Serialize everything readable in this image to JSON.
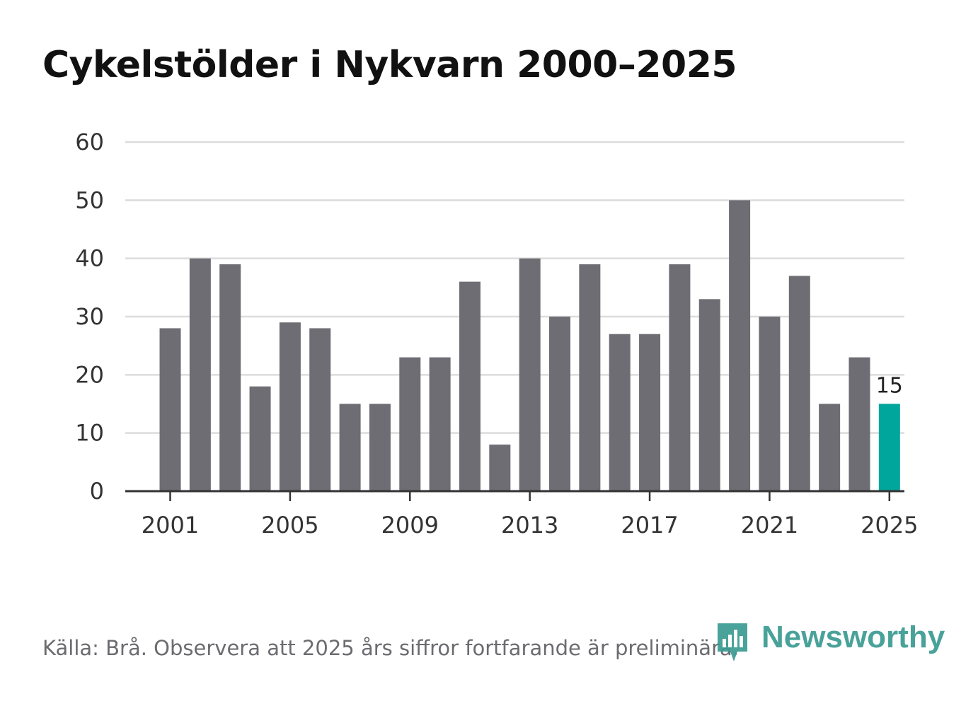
{
  "title": "Cykelstölder i Nykvarn 2000–2025",
  "source": "Källa: Brå. Observera att 2025 års siffror fortfarande är preliminära.",
  "logo": {
    "text": "Newsworthy",
    "icon": "bar-chart-badge-icon",
    "color": "#3a9b91"
  },
  "chart_data": {
    "type": "bar",
    "title": "Cykelstölder i Nykvarn 2000–2025",
    "xlabel": "",
    "ylabel": "",
    "categories": [
      "2000",
      "2001",
      "2002",
      "2003",
      "2004",
      "2005",
      "2006",
      "2007",
      "2008",
      "2009",
      "2010",
      "2011",
      "2012",
      "2013",
      "2014",
      "2015",
      "2016",
      "2017",
      "2018",
      "2019",
      "2020",
      "2021",
      "2022",
      "2023",
      "2024",
      "2025"
    ],
    "values": [
      null,
      28,
      40,
      39,
      18,
      29,
      28,
      15,
      15,
      23,
      23,
      36,
      8,
      40,
      30,
      39,
      27,
      27,
      39,
      33,
      50,
      30,
      37,
      15,
      23,
      15
    ],
    "x_tick_labels": [
      "2001",
      "2005",
      "2009",
      "2013",
      "2017",
      "2021",
      "2025"
    ],
    "y_ticks": [
      0,
      10,
      20,
      30,
      40,
      50,
      60
    ],
    "ylim": [
      0,
      60
    ],
    "grid": true,
    "highlight": {
      "category": "2025",
      "label": "15"
    },
    "colors": {
      "bar": "#6e6d73",
      "highlight": "#00a59b",
      "grid": "#dcdcdc",
      "axis": "#333333",
      "text": "#333333"
    }
  }
}
